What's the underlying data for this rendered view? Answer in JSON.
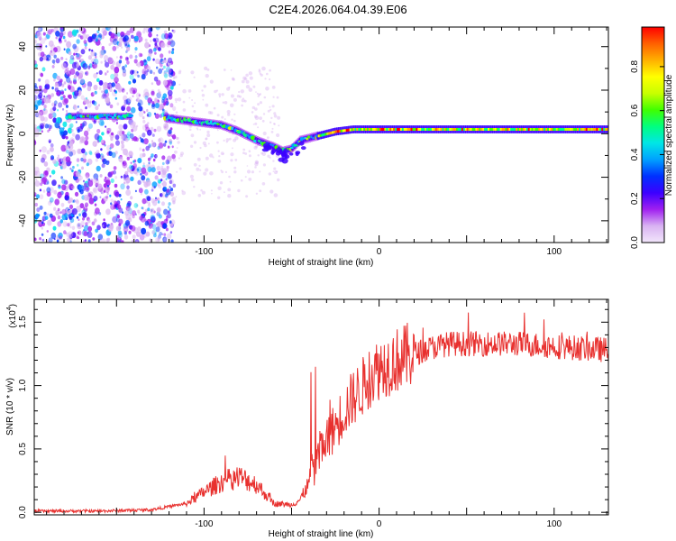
{
  "figure_title": "C2E4.2026.064.04.39.E06",
  "colors": {
    "snr_line": "#e8302e",
    "axes": "#000000"
  },
  "chart_data": [
    {
      "type": "heatmap",
      "title": "C2E4.2026.064.04.39.E06",
      "xlabel": "Height of straight line (km)",
      "ylabel": "Frequency (Hz)",
      "xlim": [
        -197,
        131
      ],
      "ylim": [
        -50,
        49
      ],
      "x_ticks": [
        -100,
        0,
        100
      ],
      "y_ticks": [
        -40,
        -20,
        0,
        20,
        40
      ],
      "colorbar": {
        "label": "Normalized spectral amplitude",
        "range": [
          0.0,
          0.98
        ],
        "ticks": [
          "0.0",
          "0.2",
          "0.4",
          "0.6",
          "0.8"
        ],
        "colors": [
          "#f2e6fb",
          "#d9b3f2",
          "#a020f0",
          "#3b00ff",
          "#0030ff",
          "#00a0ff",
          "#00e6e6",
          "#00ff80",
          "#40ff00",
          "#c8ff00",
          "#ffff00",
          "#ffb000",
          "#ff6000",
          "#ff0000"
        ]
      },
      "ridge": {
        "x": [
          -175,
          -150,
          -125,
          -120,
          -110,
          -100,
          -90,
          -80,
          -70,
          -60,
          -55,
          -50,
          -45,
          -40,
          -35,
          -30,
          -25,
          -20,
          -15,
          -10,
          0,
          20,
          50,
          80,
          110,
          131
        ],
        "y": [
          8,
          8,
          8,
          7,
          6,
          5,
          4,
          1,
          -3,
          -6,
          -8,
          -7,
          -3,
          -2,
          -1,
          0,
          1,
          1.5,
          2,
          2,
          2,
          2,
          2,
          2,
          2,
          2
        ]
      },
      "noise_region_x": [
        -197,
        -117
      ]
    },
    {
      "type": "line",
      "xlabel": "Height of straight line (km)",
      "ylabel": "SNR (10 * v/v)",
      "y_multiplier": "(x10^4)",
      "xlim": [
        -197,
        131
      ],
      "ylim": [
        -0.02,
        1.68
      ],
      "x_ticks": [
        -100,
        0,
        100
      ],
      "y_ticks": [
        0.0,
        0.5,
        1.0,
        1.5
      ],
      "series": [
        {
          "name": "SNR",
          "color": "#e8302e",
          "envelope_x": [
            -197,
            -160,
            -130,
            -110,
            -100,
            -90,
            -80,
            -70,
            -60,
            -50,
            -45,
            -40,
            -35,
            -30,
            -25,
            -20,
            -15,
            -10,
            -5,
            0,
            10,
            20,
            30,
            40,
            60,
            80,
            100,
            110,
            120,
            131
          ],
          "envelope_y": [
            0.01,
            0.01,
            0.02,
            0.07,
            0.16,
            0.24,
            0.28,
            0.22,
            0.07,
            0.06,
            0.1,
            0.23,
            0.45,
            0.55,
            0.68,
            0.8,
            0.9,
            0.98,
            1.07,
            1.14,
            1.2,
            1.25,
            1.3,
            1.33,
            1.33,
            1.33,
            1.31,
            1.3,
            1.29,
            1.28
          ]
        }
      ]
    }
  ],
  "colorbar_tick_labels": [
    "0.0",
    "0.2",
    "0.4",
    "0.6",
    "0.8"
  ],
  "top_x_labels": [
    "-100",
    "0",
    "100"
  ],
  "top_y_labels": [
    "-40",
    "-20",
    "0",
    "20",
    "40"
  ],
  "bottom_x_labels": [
    "-100",
    "0",
    "100"
  ],
  "bottom_y_labels": [
    "0.0",
    "0.5",
    "1.0",
    "1.5"
  ],
  "labels": {
    "top_xlabel": "Height of straight line (km)",
    "top_ylabel": "Frequency (Hz)",
    "colorbar_label": "Normalized spectral amplitude",
    "bottom_xlabel": "Height of straight line (km)",
    "bottom_ylabel": "SNR (10 * v/v)",
    "multiplier_base": "(x10",
    "multiplier_exp": "4",
    "multiplier_close": ")"
  }
}
